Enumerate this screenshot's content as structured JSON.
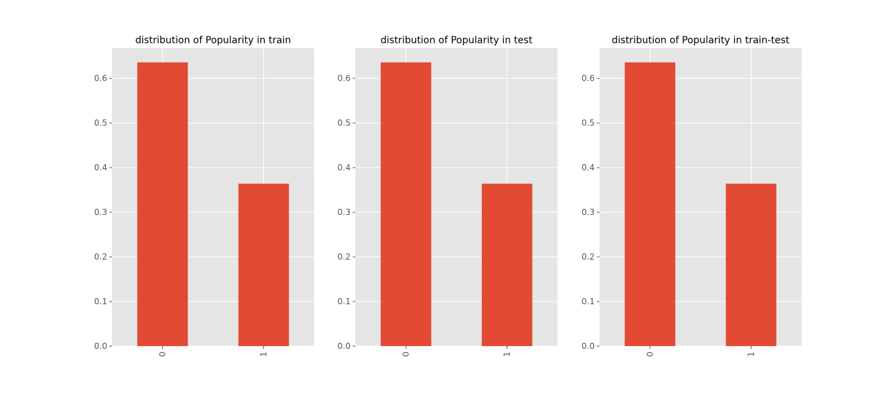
{
  "figure": {
    "background": "#ffffff",
    "axes_facecolor": "#e5e5e5",
    "grid_color": "#ffffff",
    "bar_color": "#e24a33",
    "tick_color": "#555555"
  },
  "chart_data": [
    {
      "type": "bar",
      "title": "distribution of Popularity in train",
      "xlabel": "",
      "ylabel": "",
      "categories": [
        "0",
        "1"
      ],
      "values": [
        0.636,
        0.364
      ],
      "ylim": [
        0,
        0.668
      ],
      "yticks": [
        "0.0",
        "0.1",
        "0.2",
        "0.3",
        "0.4",
        "0.5",
        "0.6"
      ],
      "grid": true,
      "legend": "none"
    },
    {
      "type": "bar",
      "title": "distribution of Popularity in test",
      "xlabel": "",
      "ylabel": "",
      "categories": [
        "0",
        "1"
      ],
      "values": [
        0.636,
        0.364
      ],
      "ylim": [
        0,
        0.668
      ],
      "yticks": [
        "0.0",
        "0.1",
        "0.2",
        "0.3",
        "0.4",
        "0.5",
        "0.6"
      ],
      "grid": true,
      "legend": "none"
    },
    {
      "type": "bar",
      "title": "distribution of Popularity in train-test",
      "xlabel": "",
      "ylabel": "",
      "categories": [
        "0",
        "1"
      ],
      "values": [
        0.636,
        0.364
      ],
      "ylim": [
        0,
        0.668
      ],
      "yticks": [
        "0.0",
        "0.1",
        "0.2",
        "0.3",
        "0.4",
        "0.5",
        "0.6"
      ],
      "grid": true,
      "legend": "none"
    }
  ]
}
